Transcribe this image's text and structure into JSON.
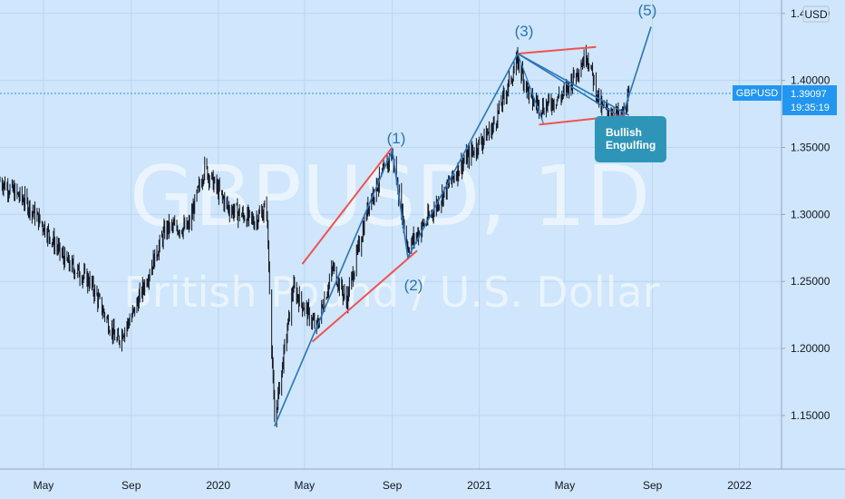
{
  "watermark": {
    "symbol": "GBPUSD, 1D",
    "description": "British Pound / U.S. Dollar"
  },
  "colors": {
    "background": "#cfe6fd",
    "candle": "#131722",
    "wave_line": "#2a74b9",
    "channel_line": "#f05252",
    "label_bg": "#2e95b8",
    "tag_bg": "#2196f3"
  },
  "chart_data": {
    "type": "line",
    "title": "",
    "x_ticks": [
      "May",
      "Sep",
      "2020",
      "May",
      "Sep",
      "2021",
      "May",
      "Sep",
      "2022"
    ],
    "y_ticks": [
      "1.15000",
      "1.20000",
      "1.25000",
      "1.30000",
      "1.35000",
      "1.40000",
      "1.45000"
    ],
    "currency_label": "USD",
    "ylim": [
      1.11,
      1.46
    ],
    "xlim": [
      "2019-03-01",
      "2022-03-01"
    ],
    "price_series": {
      "name": "GBPUSD",
      "x": [
        "2019-03-01",
        "2019-04-05",
        "2019-05-03",
        "2019-06-01",
        "2019-07-05",
        "2019-08-12",
        "2019-09-03",
        "2019-10-20",
        "2019-11-20",
        "2019-12-13",
        "2020-01-15",
        "2020-02-20",
        "2020-03-09",
        "2020-03-20",
        "2020-04-15",
        "2020-05-18",
        "2020-06-10",
        "2020-06-29",
        "2020-07-31",
        "2020-09-01",
        "2020-09-23",
        "2020-10-25",
        "2020-12-04",
        "2021-01-20",
        "2021-02-24",
        "2021-03-15",
        "2021-04-01",
        "2021-04-30",
        "2021-06-01",
        "2021-06-20",
        "2021-07-20",
        "2021-08-01"
      ],
      "values": [
        1.325,
        1.31,
        1.29,
        1.265,
        1.25,
        1.205,
        1.225,
        1.29,
        1.29,
        1.335,
        1.305,
        1.295,
        1.305,
        1.145,
        1.245,
        1.215,
        1.26,
        1.235,
        1.31,
        1.345,
        1.275,
        1.3,
        1.335,
        1.365,
        1.415,
        1.385,
        1.38,
        1.39,
        1.42,
        1.38,
        1.372,
        1.39
      ]
    },
    "elliott_wave": {
      "labels": [
        "(1)",
        "(2)",
        "(3)",
        "(5)"
      ],
      "points": [
        {
          "x": "2020-03-20",
          "y": 1.142
        },
        {
          "x": "2020-09-01",
          "y": 1.348
        },
        {
          "x": "2020-09-23",
          "y": 1.268
        },
        {
          "x": "2021-02-24",
          "y": 1.42
        },
        {
          "x": "2021-07-20",
          "y": 1.372
        },
        {
          "x": "2021-08-30",
          "y": 1.44
        }
      ],
      "triangle": [
        {
          "x": "2021-02-24",
          "y": 1.42
        },
        {
          "x": "2021-04-01",
          "y": 1.368
        },
        {
          "x": "2021-07-30",
          "y": 1.374
        }
      ]
    },
    "channel_lines": [
      [
        {
          "x": "2020-04-28",
          "y": 1.263
        },
        {
          "x": "2020-09-01",
          "y": 1.35
        }
      ],
      [
        {
          "x": "2020-05-12",
          "y": 1.205
        },
        {
          "x": "2020-10-06",
          "y": 1.273
        }
      ],
      [
        {
          "x": "2021-02-24",
          "y": 1.42
        },
        {
          "x": "2021-06-14",
          "y": 1.425
        }
      ],
      [
        {
          "x": "2021-03-26",
          "y": 1.367
        },
        {
          "x": "2021-07-25",
          "y": 1.374
        }
      ]
    ],
    "annotation": {
      "text": [
        "Bullish",
        "Engulfing"
      ]
    },
    "last_price": {
      "symbol": "GBPUSD",
      "price": "1.39097",
      "countdown": "19:35:19",
      "value": 1.39097
    }
  }
}
